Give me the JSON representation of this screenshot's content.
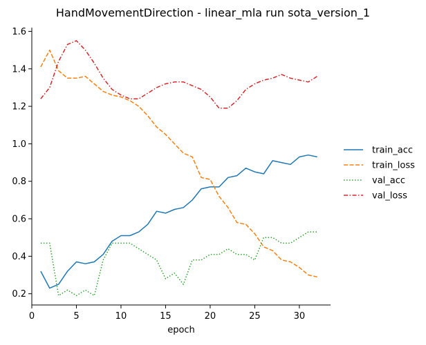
{
  "chart_data": {
    "type": "line",
    "title": "HandMovementDirection - linear_mla run sota_version_1",
    "xlabel": "epoch",
    "ylabel": "",
    "xlim": [
      0,
      33.5
    ],
    "ylim": [
      0.14,
      1.62
    ],
    "xticks": [
      0,
      5,
      10,
      15,
      20,
      25,
      30
    ],
    "yticks": [
      0.2,
      0.4,
      0.6,
      0.8,
      1.0,
      1.2,
      1.4,
      1.6
    ],
    "ytick_labels": [
      "0.2",
      "0.4",
      "0.6",
      "0.8",
      "1.0",
      "1.2",
      "1.4",
      "1.6"
    ],
    "grid": false,
    "legend_position": "right",
    "x": [
      1,
      2,
      3,
      4,
      5,
      6,
      7,
      8,
      9,
      10,
      11,
      12,
      13,
      14,
      15,
      16,
      17,
      18,
      19,
      20,
      21,
      22,
      23,
      24,
      25,
      26,
      27,
      28,
      29,
      30,
      31,
      32
    ],
    "series": [
      {
        "name": "train_acc",
        "color": "#1f77b4",
        "dash": "solid",
        "values": [
          0.32,
          0.23,
          0.25,
          0.32,
          0.37,
          0.36,
          0.37,
          0.41,
          0.48,
          0.51,
          0.51,
          0.53,
          0.57,
          0.64,
          0.63,
          0.65,
          0.66,
          0.7,
          0.76,
          0.77,
          0.77,
          0.82,
          0.83,
          0.87,
          0.85,
          0.84,
          0.91,
          0.9,
          0.89,
          0.93,
          0.94,
          0.93
        ]
      },
      {
        "name": "train_loss",
        "color": "#ff7f0e",
        "dash": "dashed",
        "values": [
          1.41,
          1.5,
          1.39,
          1.35,
          1.35,
          1.36,
          1.32,
          1.28,
          1.26,
          1.25,
          1.23,
          1.2,
          1.15,
          1.09,
          1.05,
          1.0,
          0.95,
          0.93,
          0.82,
          0.81,
          0.72,
          0.66,
          0.58,
          0.57,
          0.52,
          0.45,
          0.43,
          0.38,
          0.37,
          0.34,
          0.3,
          0.29
        ]
      },
      {
        "name": "val_acc",
        "color": "#2ca02c",
        "dash": "dotted",
        "values": [
          0.47,
          0.47,
          0.19,
          0.22,
          0.19,
          0.22,
          0.19,
          0.38,
          0.47,
          0.47,
          0.47,
          0.44,
          0.41,
          0.38,
          0.28,
          0.31,
          0.25,
          0.38,
          0.38,
          0.41,
          0.41,
          0.44,
          0.41,
          0.41,
          0.38,
          0.5,
          0.5,
          0.47,
          0.47,
          0.5,
          0.53,
          0.53
        ]
      },
      {
        "name": "val_loss",
        "color": "#d62728",
        "dash": "dashdot",
        "values": [
          1.24,
          1.3,
          1.44,
          1.53,
          1.55,
          1.5,
          1.43,
          1.35,
          1.29,
          1.26,
          1.24,
          1.24,
          1.27,
          1.3,
          1.32,
          1.33,
          1.33,
          1.31,
          1.29,
          1.25,
          1.19,
          1.19,
          1.23,
          1.29,
          1.32,
          1.34,
          1.35,
          1.37,
          1.35,
          1.34,
          1.33,
          1.36
        ]
      }
    ]
  }
}
